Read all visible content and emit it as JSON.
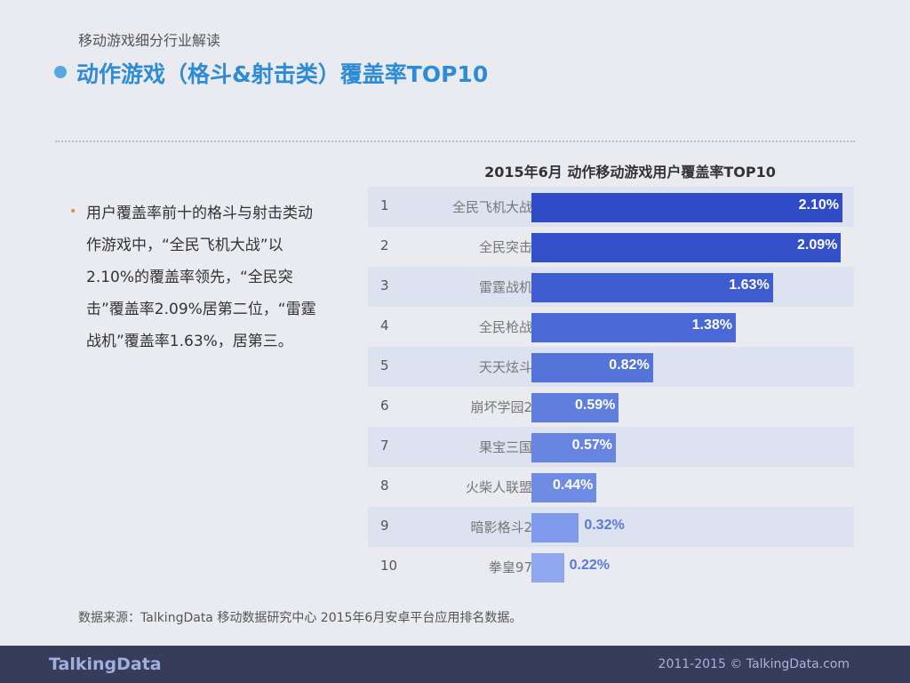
{
  "header": {
    "subtitle": "移动游戏细分行业解读",
    "title": "动作游戏（格斗&射击类）覆盖率TOP10"
  },
  "description": "用户覆盖率前十的格斗与射击类动作游戏中，“全民飞机大战”以2.10%的覆盖率领先，“全民突击”覆盖率2.09%居第二位，“雷霆战机”覆盖率1.63%，居第三。",
  "source": "数据来源：TalkingData 移动数据研究中心 2015年6月安卓平台应用排名数据。",
  "footer": {
    "logo": "TalkingData",
    "copyright": "2011-2015 © TalkingData.com"
  },
  "chart_data": {
    "type": "bar",
    "orientation": "horizontal",
    "title": "2015年6月 动作移动游戏用户覆盖率TOP10",
    "ranks": [
      "1",
      "2",
      "3",
      "4",
      "5",
      "6",
      "7",
      "8",
      "9",
      "10"
    ],
    "categories": [
      "全民飞机大战",
      "全民突击",
      "雷霆战机",
      "全民枪战",
      "天天炫斗",
      "崩坏学园2",
      "果宝三国",
      "火柴人联盟",
      "暗影格斗2",
      "拳皇97"
    ],
    "values": [
      2.1,
      2.09,
      1.63,
      1.38,
      0.82,
      0.59,
      0.57,
      0.44,
      0.32,
      0.22
    ],
    "labels": [
      "2.10%",
      "2.09%",
      "1.63%",
      "1.38%",
      "0.82%",
      "0.59%",
      "0.57%",
      "0.44%",
      "0.32%",
      "0.22%"
    ],
    "unit": "%",
    "colors": [
      "#2f4cc6",
      "#3350c9",
      "#3f5dd0",
      "#4a68d6",
      "#5574da",
      "#5f7ede",
      "#6684e0",
      "#6f8ce4",
      "#7f9aea",
      "#8ea7ee"
    ]
  }
}
